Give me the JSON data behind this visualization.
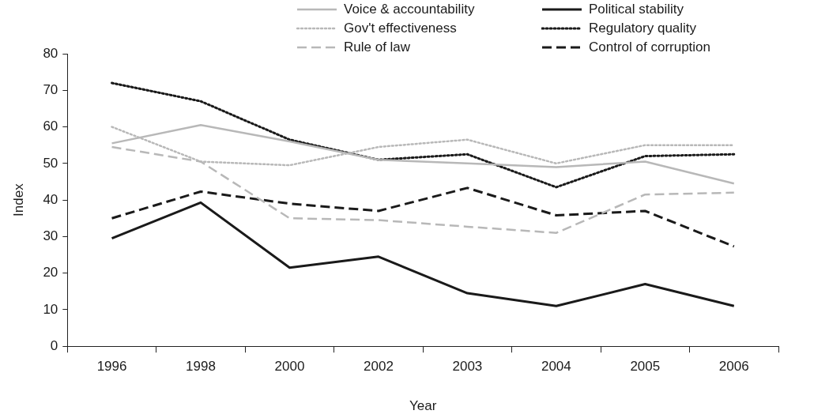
{
  "chart_data": {
    "type": "line",
    "xlabel": "Year",
    "ylabel": "Index",
    "categories": [
      "1996",
      "1998",
      "2000",
      "2002",
      "2003",
      "2004",
      "2005",
      "2006"
    ],
    "ylim": [
      0,
      80
    ],
    "yticks": [
      0,
      10,
      20,
      30,
      40,
      50,
      60,
      70,
      80
    ],
    "grid": false,
    "legend": "top right",
    "marker": "none",
    "series": [
      {
        "name": "Voice & accountability",
        "color": "#b8b8b8",
        "line_style": "solid",
        "values": [
          55.5,
          60.5,
          56,
          51,
          50,
          49,
          50.5,
          44.5
        ]
      },
      {
        "name": "Political stability",
        "color": "#1a1a1a",
        "line_style": "solid",
        "values": [
          29.5,
          39.3,
          21.5,
          24.5,
          14.5,
          11,
          17,
          11
        ]
      },
      {
        "name": "Gov't effectiveness",
        "color": "#b8b8b8",
        "line_style": "dotted",
        "values": [
          60,
          50.5,
          49.5,
          54.5,
          56.5,
          50,
          55,
          55
        ]
      },
      {
        "name": "Regulatory quality",
        "color": "#1a1a1a",
        "line_style": "dotted",
        "values": [
          72,
          67,
          56.5,
          51,
          52.5,
          43.5,
          52,
          52.5
        ]
      },
      {
        "name": "Rule of law",
        "color": "#b8b8b8",
        "line_style": "dashed",
        "values": [
          54.5,
          50.5,
          35,
          34.5,
          32.7,
          31,
          41.5,
          42
        ]
      },
      {
        "name": "Control of corruption",
        "color": "#1a1a1a",
        "line_style": "dashed",
        "values": [
          35,
          42.3,
          39,
          37,
          43.3,
          35.8,
          37,
          27.3
        ]
      }
    ]
  }
}
